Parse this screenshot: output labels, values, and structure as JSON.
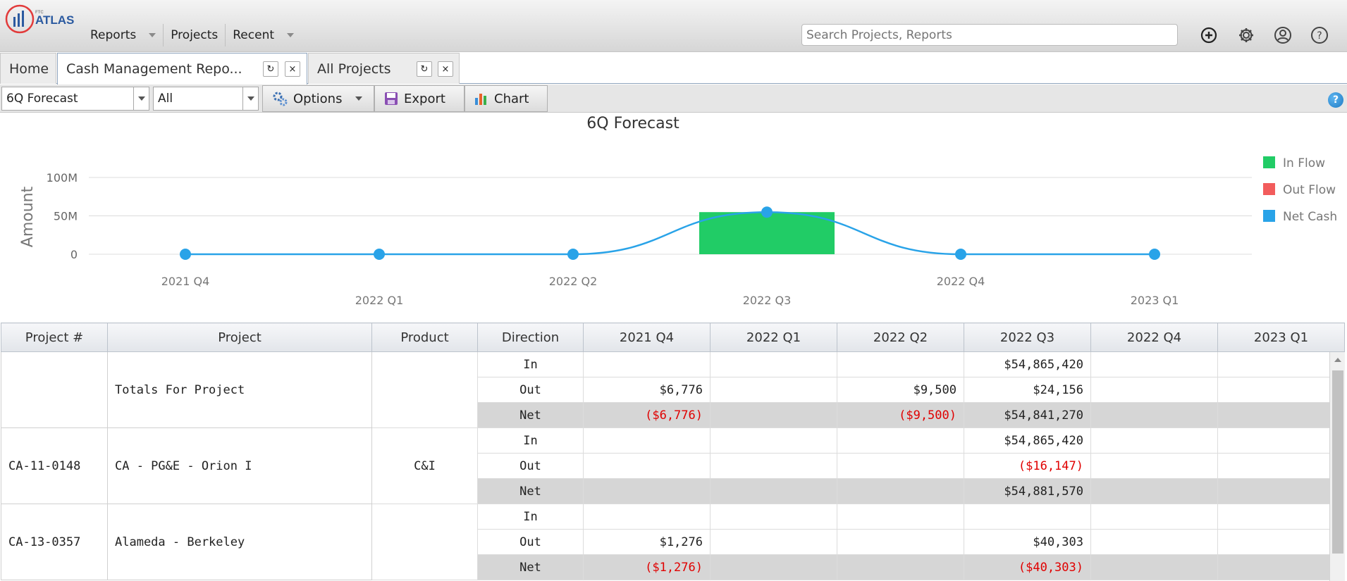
{
  "app": {
    "logo_small": "FTC",
    "logo_name": "ATLAS",
    "logo_colors": {
      "ring": "#e23b3b",
      "bars": "#2b5aa0"
    }
  },
  "nav": {
    "items": [
      {
        "label": "Reports",
        "has_dropdown": true
      },
      {
        "label": "Projects",
        "has_dropdown": false
      },
      {
        "label": "Recent",
        "has_dropdown": true
      }
    ]
  },
  "search": {
    "placeholder": "Search Projects, Reports"
  },
  "header_icons": [
    "add-circle-icon",
    "gear-icon",
    "user-icon",
    "help-icon"
  ],
  "tabs": [
    {
      "label": "Home",
      "active": false,
      "closable": false
    },
    {
      "label": "Cash Management Repo...",
      "active": true,
      "closable": true
    },
    {
      "label": "All Projects",
      "active": false,
      "closable": true
    }
  ],
  "toolbar": {
    "report_select": "6Q Forecast",
    "filter_select": "All",
    "options_label": "Options",
    "export_label": "Export",
    "chart_label": "Chart",
    "help_label": "?"
  },
  "chart_data": {
    "type": "bar",
    "title": "6Q Forecast",
    "ylabel": "Amount",
    "xlabel": "",
    "categories": [
      "2021 Q4",
      "2022 Q1",
      "2022 Q2",
      "2022 Q3",
      "2022 Q4",
      "2023 Q1"
    ],
    "y_ticks": [
      "0",
      "50M",
      "100M"
    ],
    "ylim": [
      0,
      100000000
    ],
    "grid": true,
    "legend_position": "right",
    "series": [
      {
        "name": "In Flow",
        "type": "bar",
        "color": "#21cc66",
        "values": [
          0,
          0,
          0,
          54865420,
          0,
          0
        ]
      },
      {
        "name": "Out Flow",
        "type": "bar",
        "color": "#f25c5c",
        "values": [
          6776,
          0,
          9500,
          24156,
          0,
          0
        ]
      },
      {
        "name": "Net Cash",
        "type": "line",
        "color": "#29a3e8",
        "values": [
          -6776,
          0,
          -9500,
          54841270,
          0,
          0
        ]
      }
    ]
  },
  "table": {
    "columns": [
      "Project #",
      "Project",
      "Product",
      "Direction",
      "2021 Q4",
      "2022 Q1",
      "2022 Q2",
      "2022 Q3",
      "2022 Q4",
      "2023 Q1"
    ],
    "groups": [
      {
        "project_num": "",
        "project": "Totals For Project",
        "product": "",
        "rows": [
          {
            "direction": "In",
            "values": [
              "",
              "",
              "",
              "$54,865,420",
              "",
              ""
            ]
          },
          {
            "direction": "Out",
            "values": [
              "$6,776",
              "",
              "$9,500",
              "$24,156",
              "",
              ""
            ]
          },
          {
            "direction": "Net",
            "values": [
              "($6,776)",
              "",
              "($9,500)",
              "$54,841,270",
              "",
              ""
            ]
          }
        ]
      },
      {
        "project_num": "CA-11-0148",
        "project": "CA - PG&E - Orion I",
        "product": "C&I",
        "rows": [
          {
            "direction": "In",
            "values": [
              "",
              "",
              "",
              "$54,865,420",
              "",
              ""
            ]
          },
          {
            "direction": "Out",
            "values": [
              "",
              "",
              "",
              "($16,147)",
              "",
              ""
            ]
          },
          {
            "direction": "Net",
            "values": [
              "",
              "",
              "",
              "$54,881,570",
              "",
              ""
            ]
          }
        ]
      },
      {
        "project_num": "CA-13-0357",
        "project": "Alameda - Berkeley",
        "product": "",
        "rows": [
          {
            "direction": "In",
            "values": [
              "",
              "",
              "",
              "",
              "",
              ""
            ]
          },
          {
            "direction": "Out",
            "values": [
              "$1,276",
              "",
              "",
              "$40,303",
              "",
              ""
            ]
          },
          {
            "direction": "Net",
            "values": [
              "($1,276)",
              "",
              "",
              "($40,303)",
              "",
              ""
            ]
          }
        ]
      }
    ]
  }
}
